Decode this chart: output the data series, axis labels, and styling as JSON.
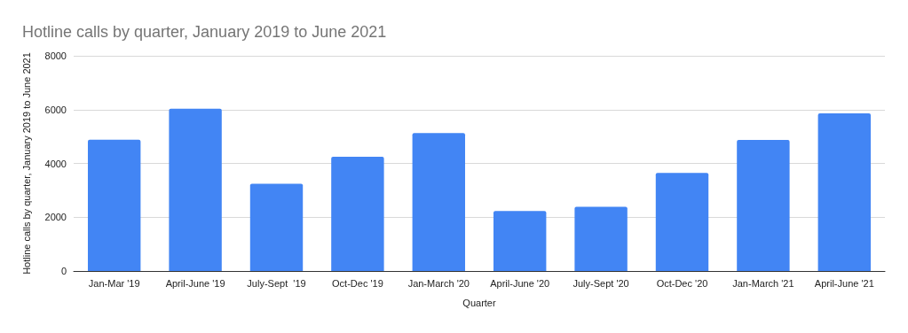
{
  "chart_data": {
    "type": "bar",
    "title": "Hotline calls by quarter, January 2019 to June 2021",
    "xlabel": "Quarter",
    "ylabel": "Hotline calls by quarter, January 2019 to June 2021",
    "categories": [
      "Jan-Mar '19",
      "April-June '19",
      "July-Sept  '19",
      "Oct-Dec '19",
      "Jan-March '20",
      "April-June '20",
      "July-Sept '20",
      "Oct-Dec '20",
      "Jan-March '21",
      "April-June '21"
    ],
    "values": [
      4880,
      6030,
      3240,
      4250,
      5130,
      2230,
      2390,
      3650,
      4870,
      5860
    ],
    "color": "#4285f4",
    "ylim": [
      0,
      8000
    ],
    "yticks": [
      0,
      2000,
      4000,
      6000,
      8000
    ],
    "grid": true
  }
}
